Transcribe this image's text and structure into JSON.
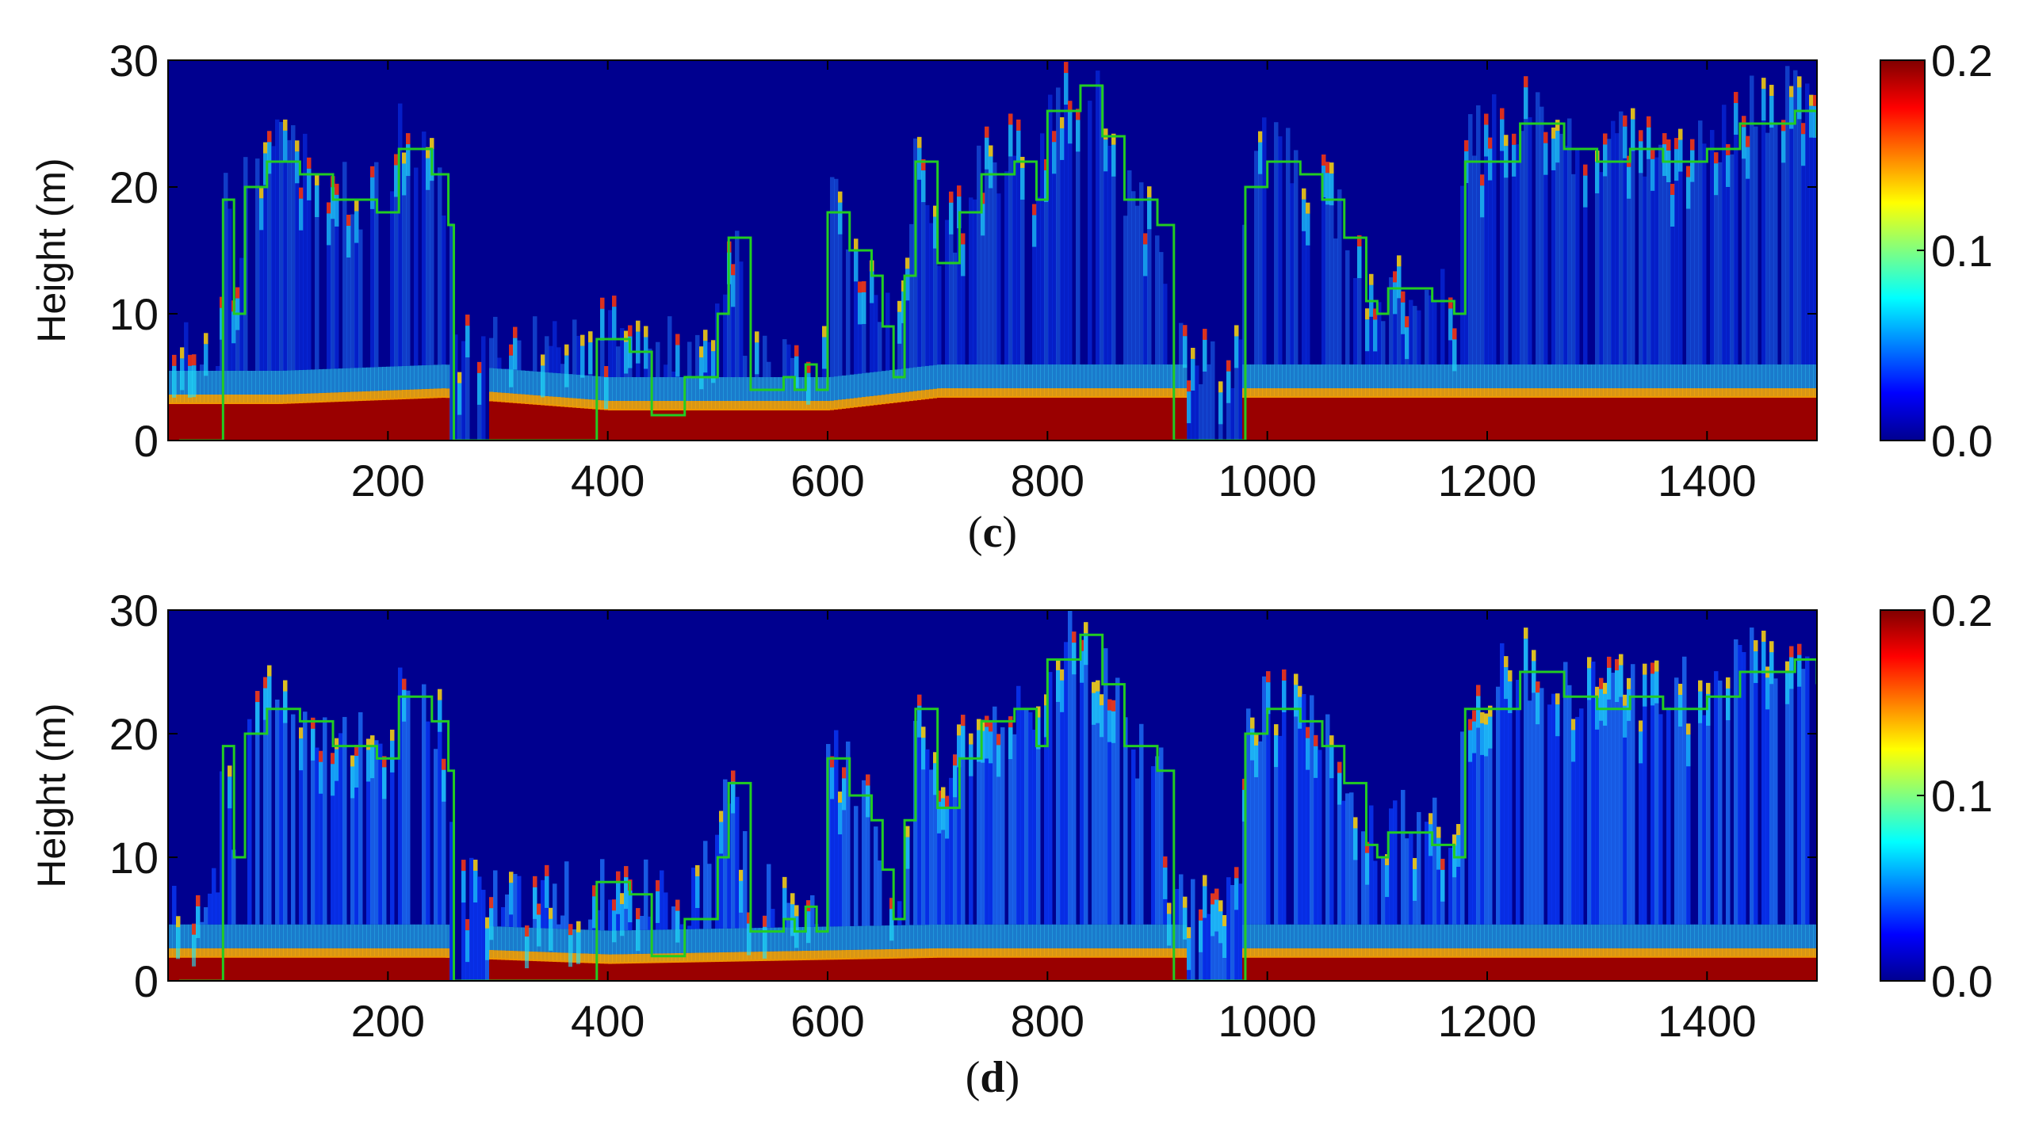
{
  "chart_data": [
    {
      "type": "heatmap",
      "panel_label": "c",
      "ylabel": "Height (m)",
      "xlabel": "",
      "xlim": [
        0,
        1500
      ],
      "ylim": [
        0,
        30
      ],
      "x_ticks": [
        200,
        400,
        600,
        800,
        1000,
        1200,
        1400
      ],
      "y_ticks": [
        0,
        10,
        20,
        30
      ],
      "colorbar": {
        "min": 0.0,
        "max": 0.2,
        "ticks": [
          "0.0",
          "0.1",
          "0.2"
        ],
        "colormap": "jet"
      },
      "overlay_line_color": "#22cc22",
      "surface_layer_height": [
        {
          "x": 0,
          "y": 3
        },
        {
          "x": 100,
          "y": 3
        },
        {
          "x": 250,
          "y": 3.5
        },
        {
          "x": 400,
          "y": 2.5
        },
        {
          "x": 600,
          "y": 2.5
        },
        {
          "x": 700,
          "y": 3.5
        },
        {
          "x": 900,
          "y": 3.5
        },
        {
          "x": 1100,
          "y": 3.5
        },
        {
          "x": 1300,
          "y": 3.5
        },
        {
          "x": 1500,
          "y": 3.5
        }
      ],
      "green_line": [
        {
          "x": 10,
          "y": 0
        },
        {
          "x": 40,
          "y": 0
        },
        {
          "x": 50,
          "y": 19
        },
        {
          "x": 60,
          "y": 10
        },
        {
          "x": 70,
          "y": 20
        },
        {
          "x": 90,
          "y": 22
        },
        {
          "x": 120,
          "y": 21
        },
        {
          "x": 150,
          "y": 19
        },
        {
          "x": 190,
          "y": 18
        },
        {
          "x": 210,
          "y": 23
        },
        {
          "x": 240,
          "y": 21
        },
        {
          "x": 255,
          "y": 17
        },
        {
          "x": 260,
          "y": 0
        },
        {
          "x": 380,
          "y": 0
        },
        {
          "x": 390,
          "y": 8
        },
        {
          "x": 420,
          "y": 7
        },
        {
          "x": 440,
          "y": 2
        },
        {
          "x": 470,
          "y": 5
        },
        {
          "x": 500,
          "y": 10
        },
        {
          "x": 510,
          "y": 16
        },
        {
          "x": 530,
          "y": 4
        },
        {
          "x": 560,
          "y": 5
        },
        {
          "x": 570,
          "y": 4
        },
        {
          "x": 580,
          "y": 6
        },
        {
          "x": 590,
          "y": 4
        },
        {
          "x": 600,
          "y": 18
        },
        {
          "x": 620,
          "y": 15
        },
        {
          "x": 640,
          "y": 13
        },
        {
          "x": 650,
          "y": 9
        },
        {
          "x": 660,
          "y": 5
        },
        {
          "x": 670,
          "y": 13
        },
        {
          "x": 680,
          "y": 22
        },
        {
          "x": 700,
          "y": 14
        },
        {
          "x": 720,
          "y": 18
        },
        {
          "x": 740,
          "y": 21
        },
        {
          "x": 770,
          "y": 22
        },
        {
          "x": 790,
          "y": 19
        },
        {
          "x": 800,
          "y": 26
        },
        {
          "x": 830,
          "y": 28
        },
        {
          "x": 850,
          "y": 24
        },
        {
          "x": 870,
          "y": 19
        },
        {
          "x": 900,
          "y": 17
        },
        {
          "x": 915,
          "y": 0
        },
        {
          "x": 970,
          "y": 0
        },
        {
          "x": 980,
          "y": 20
        },
        {
          "x": 1000,
          "y": 22
        },
        {
          "x": 1030,
          "y": 21
        },
        {
          "x": 1050,
          "y": 19
        },
        {
          "x": 1070,
          "y": 16
        },
        {
          "x": 1090,
          "y": 11
        },
        {
          "x": 1100,
          "y": 10
        },
        {
          "x": 1110,
          "y": 12
        },
        {
          "x": 1150,
          "y": 11
        },
        {
          "x": 1170,
          "y": 10
        },
        {
          "x": 1180,
          "y": 22
        },
        {
          "x": 1230,
          "y": 25
        },
        {
          "x": 1270,
          "y": 23
        },
        {
          "x": 1300,
          "y": 22
        },
        {
          "x": 1330,
          "y": 23
        },
        {
          "x": 1360,
          "y": 22
        },
        {
          "x": 1400,
          "y": 23
        },
        {
          "x": 1430,
          "y": 25
        },
        {
          "x": 1460,
          "y": 25
        },
        {
          "x": 1480,
          "y": 26
        },
        {
          "x": 1500,
          "y": 24
        }
      ]
    },
    {
      "type": "heatmap",
      "panel_label": "d",
      "ylabel": "Height (m)",
      "xlabel": "",
      "xlim": [
        0,
        1500
      ],
      "ylim": [
        0,
        30
      ],
      "x_ticks": [
        200,
        400,
        600,
        800,
        1000,
        1200,
        1400
      ],
      "y_ticks": [
        0,
        10,
        20,
        30
      ],
      "colorbar": {
        "min": 0.0,
        "max": 0.2,
        "ticks": [
          "0.0",
          "0.1",
          "0.2"
        ],
        "colormap": "jet"
      },
      "overlay_line_color": "#22cc22",
      "surface_layer_height": [
        {
          "x": 0,
          "y": 2
        },
        {
          "x": 250,
          "y": 2
        },
        {
          "x": 400,
          "y": 1.5
        },
        {
          "x": 700,
          "y": 2
        },
        {
          "x": 1000,
          "y": 2
        },
        {
          "x": 1500,
          "y": 2
        }
      ],
      "green_line": [
        {
          "x": 10,
          "y": 0
        },
        {
          "x": 40,
          "y": 0
        },
        {
          "x": 50,
          "y": 19
        },
        {
          "x": 60,
          "y": 10
        },
        {
          "x": 70,
          "y": 20
        },
        {
          "x": 90,
          "y": 22
        },
        {
          "x": 120,
          "y": 21
        },
        {
          "x": 150,
          "y": 19
        },
        {
          "x": 190,
          "y": 18
        },
        {
          "x": 210,
          "y": 23
        },
        {
          "x": 240,
          "y": 21
        },
        {
          "x": 255,
          "y": 17
        },
        {
          "x": 260,
          "y": 0
        },
        {
          "x": 380,
          "y": 0
        },
        {
          "x": 390,
          "y": 8
        },
        {
          "x": 420,
          "y": 7
        },
        {
          "x": 440,
          "y": 2
        },
        {
          "x": 470,
          "y": 5
        },
        {
          "x": 500,
          "y": 10
        },
        {
          "x": 510,
          "y": 16
        },
        {
          "x": 530,
          "y": 4
        },
        {
          "x": 560,
          "y": 5
        },
        {
          "x": 570,
          "y": 4
        },
        {
          "x": 580,
          "y": 6
        },
        {
          "x": 590,
          "y": 4
        },
        {
          "x": 600,
          "y": 18
        },
        {
          "x": 620,
          "y": 15
        },
        {
          "x": 640,
          "y": 13
        },
        {
          "x": 650,
          "y": 9
        },
        {
          "x": 660,
          "y": 5
        },
        {
          "x": 670,
          "y": 13
        },
        {
          "x": 680,
          "y": 22
        },
        {
          "x": 700,
          "y": 14
        },
        {
          "x": 720,
          "y": 18
        },
        {
          "x": 740,
          "y": 21
        },
        {
          "x": 770,
          "y": 22
        },
        {
          "x": 790,
          "y": 19
        },
        {
          "x": 800,
          "y": 26
        },
        {
          "x": 830,
          "y": 28
        },
        {
          "x": 850,
          "y": 24
        },
        {
          "x": 870,
          "y": 19
        },
        {
          "x": 900,
          "y": 17
        },
        {
          "x": 915,
          "y": 0
        },
        {
          "x": 970,
          "y": 0
        },
        {
          "x": 980,
          "y": 20
        },
        {
          "x": 1000,
          "y": 22
        },
        {
          "x": 1030,
          "y": 21
        },
        {
          "x": 1050,
          "y": 19
        },
        {
          "x": 1070,
          "y": 16
        },
        {
          "x": 1090,
          "y": 11
        },
        {
          "x": 1100,
          "y": 10
        },
        {
          "x": 1110,
          "y": 12
        },
        {
          "x": 1150,
          "y": 11
        },
        {
          "x": 1170,
          "y": 10
        },
        {
          "x": 1180,
          "y": 22
        },
        {
          "x": 1230,
          "y": 25
        },
        {
          "x": 1270,
          "y": 23
        },
        {
          "x": 1300,
          "y": 22
        },
        {
          "x": 1330,
          "y": 23
        },
        {
          "x": 1360,
          "y": 22
        },
        {
          "x": 1400,
          "y": 23
        },
        {
          "x": 1430,
          "y": 25
        },
        {
          "x": 1460,
          "y": 25
        },
        {
          "x": 1480,
          "y": 26
        },
        {
          "x": 1500,
          "y": 24
        }
      ]
    }
  ]
}
